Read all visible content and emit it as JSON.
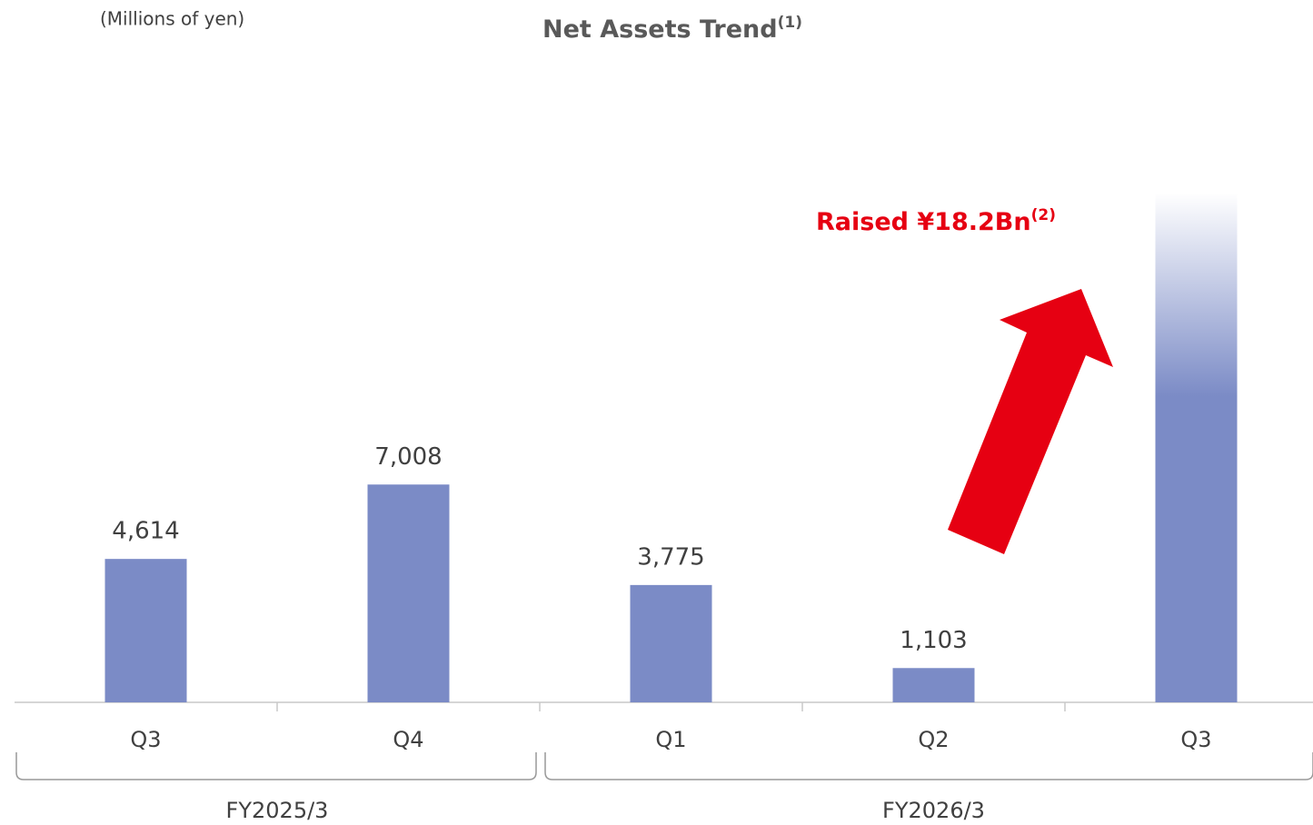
{
  "chart_data": {
    "type": "bar",
    "title": "Net Assets Trend",
    "title_note": "(1)",
    "unit_label": "(Millions of yen)",
    "annotation": "Raised ¥18.2Bn",
    "annotation_note": "(2)",
    "categories": [
      "Q3",
      "Q4",
      "Q1",
      "Q2",
      "Q3"
    ],
    "values": [
      4614,
      7008,
      3775,
      1103,
      16400
    ],
    "value_labels": [
      "4,614",
      "7,008",
      "3,775",
      "1,103",
      null
    ],
    "color": "#7b8bc6",
    "ylim": [
      0,
      16400
    ],
    "groups": [
      {
        "name": "FY2025/3",
        "size": 2
      },
      {
        "name": "FY2026/3",
        "size": 3
      }
    ]
  }
}
